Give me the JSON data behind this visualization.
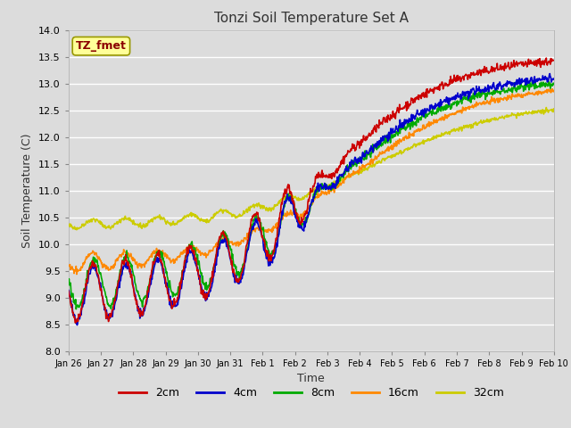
{
  "title": "Tonzi Soil Temperature Set A",
  "xlabel": "Time",
  "ylabel": "Soil Temperature (C)",
  "ylim": [
    8.0,
    14.0
  ],
  "yticks": [
    8.0,
    8.5,
    9.0,
    9.5,
    10.0,
    10.5,
    11.0,
    11.5,
    12.0,
    12.5,
    13.0,
    13.5,
    14.0
  ],
  "xtick_labels": [
    "Jan 26",
    "Jan 27",
    "Jan 28",
    "Jan 29",
    "Jan 30",
    "Jan 31",
    "Feb 1",
    "Feb 2",
    "Feb 3",
    "Feb 4",
    "Feb 5",
    "Feb 6",
    "Feb 7",
    "Feb 8",
    "Feb 9",
    "Feb 10"
  ],
  "legend_label": "TZ_fmet",
  "series": {
    "2cm": {
      "color": "#cc0000",
      "linewidth": 1.2
    },
    "4cm": {
      "color": "#0000cc",
      "linewidth": 1.2
    },
    "8cm": {
      "color": "#00aa00",
      "linewidth": 1.2
    },
    "16cm": {
      "color": "#ff8800",
      "linewidth": 1.2
    },
    "32cm": {
      "color": "#cccc00",
      "linewidth": 1.2
    }
  },
  "legend_items": [
    "2cm",
    "4cm",
    "8cm",
    "16cm",
    "32cm"
  ],
  "legend_colors": [
    "#cc0000",
    "#0000cc",
    "#00aa00",
    "#ff8800",
    "#cccc00"
  ],
  "plot_bg_color": "#dcdcdc",
  "grid_color": "#ffffff"
}
